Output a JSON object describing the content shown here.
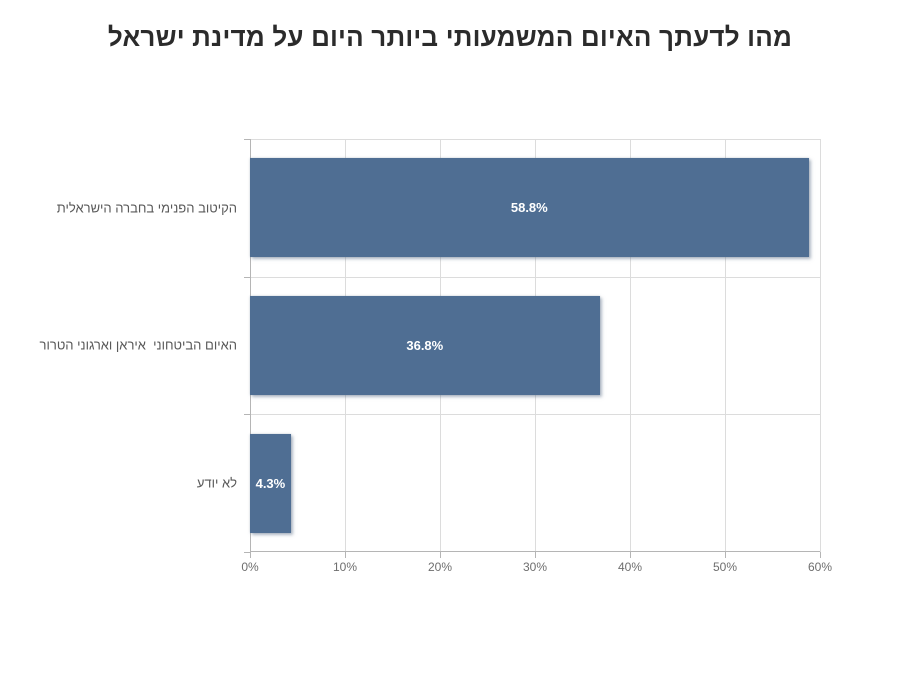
{
  "title": "מהו לדעתך האיום המשמעותי ביותר היום על מדינת ישראל",
  "chart_data": {
    "type": "bar",
    "orientation": "horizontal",
    "title": "מהו לדעתך האיום המשמעותי ביותר היום על מדינת ישראל",
    "categories": [
      "הקיטוב הפנימי בחברה הישראלית",
      "האיום הביטחוני  איראן וארגוני הטרור",
      "לא יודע"
    ],
    "values": [
      58.8,
      36.8,
      4.3
    ],
    "data_labels": [
      "58.8%",
      "36.8%",
      "4.3%"
    ],
    "x_tick_labels": [
      "0%",
      "10%",
      "20%",
      "30%",
      "40%",
      "50%",
      "60%"
    ],
    "xlim": [
      0,
      60
    ],
    "grid": true,
    "legend": "none",
    "colors": {
      "bar": "#4f6e93",
      "bar_label": "#ffffff",
      "title_text": "#2b2b2b",
      "axis_text": "#6e6e6e",
      "category_text": "#595959",
      "gridline": "#dcdcdc",
      "axis_line": "#b5b5b5"
    }
  }
}
